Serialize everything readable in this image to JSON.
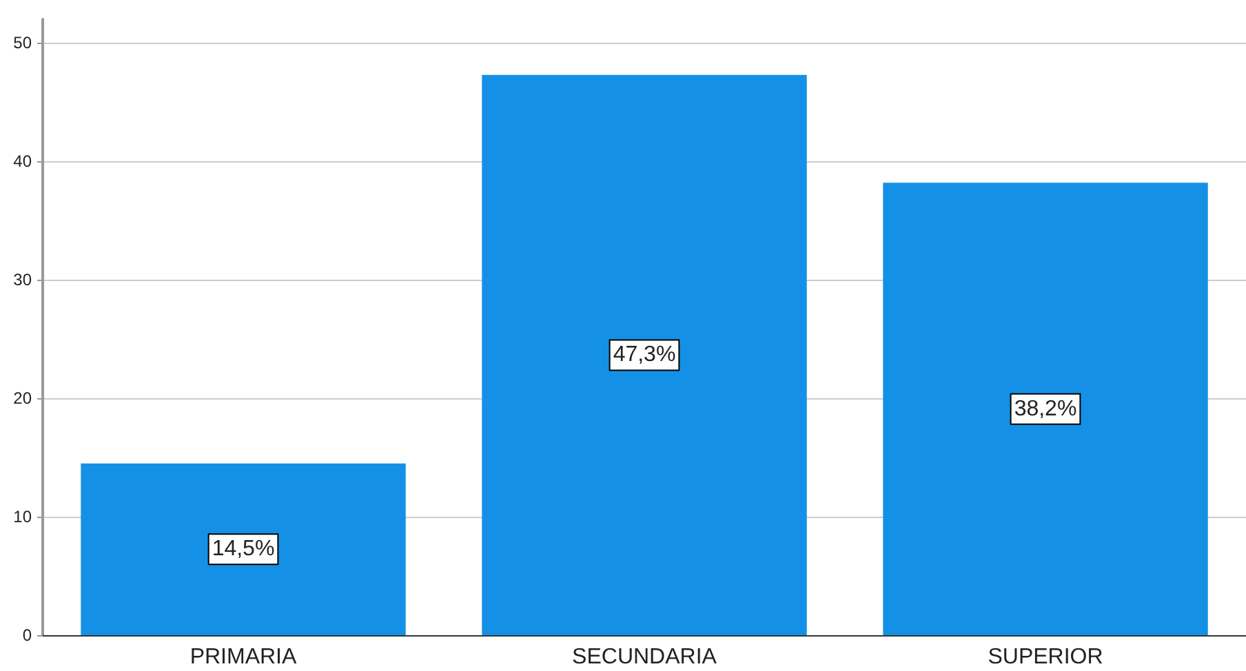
{
  "chart_data": {
    "type": "bar",
    "categories": [
      "PRIMARIA",
      "SECUNDARIA",
      "SUPERIOR"
    ],
    "values": [
      14.5,
      47.3,
      38.2
    ],
    "value_labels": [
      "14,5%",
      "47,3%",
      "38,2%"
    ],
    "color": "#1491e6",
    "ylim": [
      0,
      52
    ],
    "yticks": [
      0,
      10,
      20,
      30,
      40,
      50
    ],
    "grid": "y"
  }
}
